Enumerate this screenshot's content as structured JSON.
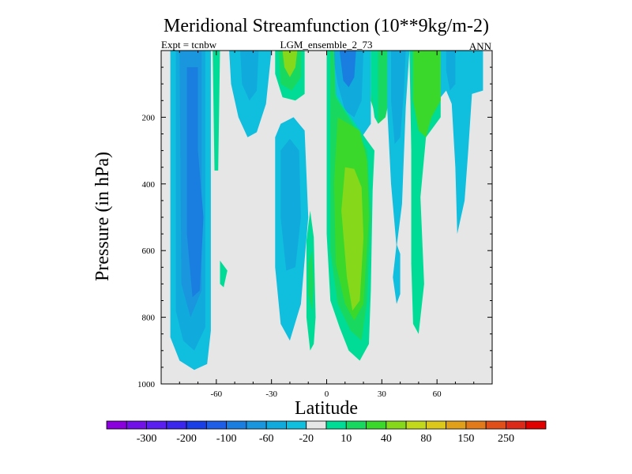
{
  "chart_data": {
    "type": "contour",
    "title": "Meridional Streamfunction (10**9kg/m-2)",
    "subtitle_left": "Expt = tcnbw",
    "subtitle_center": "LGM_ensemble_2_73",
    "subtitle_right": "ANN",
    "xlabel": "Latitude",
    "ylabel": "Pressure (in hPa)",
    "xlim": [
      -90,
      90
    ],
    "ylim": [
      1000,
      0
    ],
    "x_ticks": [
      -60,
      -30,
      0,
      30,
      60
    ],
    "x_tick_labels": [
      "-60",
      "-30",
      "0",
      "30",
      "60"
    ],
    "y_ticks": [
      200,
      400,
      600,
      800,
      1000
    ],
    "y_tick_labels": [
      "200",
      "400",
      "600",
      "800",
      "1000"
    ],
    "background_color": "#e6e6e6",
    "colorbar": {
      "colors": [
        "#8a00dc",
        "#7210e8",
        "#5a1ef0",
        "#3a26ec",
        "#1a3ee6",
        "#1e5ee6",
        "#1a7ee0",
        "#1a96de",
        "#10aadc",
        "#10bede",
        "#e6e6e6",
        "#00dc96",
        "#18d860",
        "#3ad82a",
        "#86d81a",
        "#c2d81a",
        "#dcc81a",
        "#e0a01a",
        "#e07a1a",
        "#e04e1a",
        "#dc2a1a",
        "#e00000"
      ],
      "labels": [
        {
          "after_index": 1,
          "text": "-300"
        },
        {
          "after_index": 3,
          "text": "-200"
        },
        {
          "after_index": 5,
          "text": "-100"
        },
        {
          "after_index": 7,
          "text": "-60"
        },
        {
          "after_index": 9,
          "text": "-20"
        },
        {
          "after_index": 11,
          "text": "10"
        },
        {
          "after_index": 13,
          "text": "40"
        },
        {
          "after_index": 15,
          "text": "80"
        },
        {
          "after_index": 17,
          "text": "150"
        },
        {
          "after_index": 19,
          "text": "250"
        }
      ]
    },
    "regions": [
      {
        "name": "sh-cell-outer",
        "color": "#10bede",
        "pts": [
          [
            -85,
            0
          ],
          [
            -63,
            0
          ],
          [
            -63,
            840
          ],
          [
            -65,
            940
          ],
          [
            -72,
            958
          ],
          [
            -80,
            930
          ],
          [
            -85,
            860
          ]
        ]
      },
      {
        "name": "sh-cell-l2",
        "color": "#10aadc",
        "pts": [
          [
            -82,
            0
          ],
          [
            -66,
            0
          ],
          [
            -66,
            830
          ],
          [
            -72,
            900
          ],
          [
            -78,
            870
          ],
          [
            -82,
            780
          ]
        ]
      },
      {
        "name": "sh-cell-l3",
        "color": "#1a96de",
        "pts": [
          [
            -80,
            0
          ],
          [
            -68,
            0
          ],
          [
            -68,
            720
          ],
          [
            -74,
            800
          ],
          [
            -79,
            700
          ]
        ]
      },
      {
        "name": "sh-cell-core",
        "color": "#1a7ee0",
        "pts": [
          [
            -76,
            50
          ],
          [
            -70,
            50
          ],
          [
            -70,
            300
          ],
          [
            -67,
            500
          ],
          [
            -69,
            720
          ],
          [
            -73,
            740
          ],
          [
            -76,
            550
          ]
        ]
      },
      {
        "name": "ferrel-strip",
        "color": "#00dc96",
        "pts": [
          [
            -62,
            0
          ],
          [
            -58,
            0
          ],
          [
            -59,
            360
          ],
          [
            -61,
            360
          ]
        ]
      },
      {
        "name": "small-green-blob",
        "color": "#00dc96",
        "pts": [
          [
            -58,
            630
          ],
          [
            -54,
            660
          ],
          [
            -56,
            710
          ],
          [
            -58,
            700
          ]
        ]
      },
      {
        "name": "nh-mid-cell",
        "color": "#10bede",
        "pts": [
          [
            -53,
            0
          ],
          [
            -30,
            0
          ],
          [
            -33,
            160
          ],
          [
            -38,
            245
          ],
          [
            -43,
            260
          ],
          [
            -48,
            200
          ],
          [
            -52,
            100
          ]
        ]
      },
      {
        "name": "nh-mid-core",
        "color": "#10aadc",
        "pts": [
          [
            -47,
            0
          ],
          [
            -37,
            0
          ],
          [
            -38,
            120
          ],
          [
            -42,
            150
          ],
          [
            -46,
            100
          ]
        ]
      },
      {
        "name": "trop-green-outer",
        "color": "#00dc96",
        "pts": [
          [
            -28,
            0
          ],
          [
            -12,
            0
          ],
          [
            -12,
            130
          ],
          [
            -17,
            150
          ],
          [
            -24,
            140
          ],
          [
            -28,
            70
          ]
        ]
      },
      {
        "name": "trop-green-mid",
        "color": "#18d860",
        "pts": [
          [
            -26,
            0
          ],
          [
            -14,
            0
          ],
          [
            -14,
            80
          ],
          [
            -19,
            120
          ],
          [
            -25,
            100
          ]
        ]
      },
      {
        "name": "trop-green-core",
        "color": "#86d81a",
        "pts": [
          [
            -24,
            0
          ],
          [
            -16,
            0
          ],
          [
            -17,
            50
          ],
          [
            -20,
            80
          ],
          [
            -23,
            50
          ]
        ]
      },
      {
        "name": "mid-blue-cell",
        "color": "#10bede",
        "pts": [
          [
            -28,
            260
          ],
          [
            -25,
            220
          ],
          [
            -18,
            200
          ],
          [
            -12,
            240
          ],
          [
            -10,
            500
          ],
          [
            -14,
            760
          ],
          [
            -20,
            870
          ],
          [
            -25,
            820
          ],
          [
            -28,
            650
          ]
        ]
      },
      {
        "name": "mid-blue-core",
        "color": "#10aadc",
        "pts": [
          [
            -25,
            300
          ],
          [
            -20,
            265
          ],
          [
            -15,
            300
          ],
          [
            -14,
            500
          ],
          [
            -17,
            650
          ],
          [
            -22,
            660
          ],
          [
            -25,
            500
          ]
        ]
      },
      {
        "name": "eq-green-strip",
        "color": "#00dc96",
        "pts": [
          [
            -11,
            570
          ],
          [
            -9,
            480
          ],
          [
            -7,
            560
          ],
          [
            -6,
            800
          ],
          [
            -7,
            880
          ],
          [
            -9,
            900
          ],
          [
            -11,
            800
          ]
        ]
      },
      {
        "name": "eq-green-strip-core",
        "color": "#18d860",
        "pts": [
          [
            -10,
            640
          ],
          [
            -8,
            600
          ],
          [
            -7,
            700
          ],
          [
            -8,
            780
          ],
          [
            -10,
            730
          ]
        ]
      },
      {
        "name": "eq-blue-top",
        "color": "#10bede",
        "pts": [
          [
            0,
            0
          ],
          [
            24,
            0
          ],
          [
            24,
            220
          ],
          [
            19,
            260
          ],
          [
            12,
            240
          ],
          [
            5,
            150
          ],
          [
            1,
            80
          ]
        ]
      },
      {
        "name": "eq-blue-top-l2",
        "color": "#10aadc",
        "pts": [
          [
            3,
            0
          ],
          [
            20,
            0
          ],
          [
            19,
            150
          ],
          [
            15,
            200
          ],
          [
            10,
            180
          ],
          [
            6,
            100
          ]
        ]
      },
      {
        "name": "eq-blue-top-core",
        "color": "#1a7ee0",
        "pts": [
          [
            7,
            0
          ],
          [
            16,
            0
          ],
          [
            15,
            80
          ],
          [
            12,
            110
          ],
          [
            9,
            90
          ]
        ]
      },
      {
        "name": "nh-hadley-outer",
        "color": "#00dc96",
        "pts": [
          [
            0,
            0
          ],
          [
            4,
            0
          ],
          [
            5,
            130
          ],
          [
            8,
            160
          ],
          [
            22,
            270
          ],
          [
            26,
            300
          ],
          [
            25,
            420
          ],
          [
            24,
            720
          ],
          [
            23,
            880
          ],
          [
            18,
            930
          ],
          [
            12,
            900
          ],
          [
            7,
            830
          ],
          [
            2,
            750
          ],
          [
            0,
            550
          ]
        ]
      },
      {
        "name": "nh-hadley-l2",
        "color": "#18d860",
        "pts": [
          [
            2,
            0
          ],
          [
            4,
            0
          ],
          [
            5,
            140
          ],
          [
            14,
            220
          ],
          [
            22,
            300
          ],
          [
            24,
            500
          ],
          [
            22,
            750
          ],
          [
            19,
            870
          ],
          [
            13,
            840
          ],
          [
            6,
            760
          ],
          [
            2,
            600
          ]
        ]
      },
      {
        "name": "nh-hadley-l3",
        "color": "#3ad82a",
        "pts": [
          [
            6,
            200
          ],
          [
            18,
            240
          ],
          [
            22,
            330
          ],
          [
            23,
            500
          ],
          [
            20,
            760
          ],
          [
            15,
            810
          ],
          [
            10,
            760
          ],
          [
            5,
            640
          ],
          [
            4,
            400
          ]
        ]
      },
      {
        "name": "nh-hadley-core",
        "color": "#86d81a",
        "pts": [
          [
            10,
            350
          ],
          [
            15,
            355
          ],
          [
            19,
            410
          ],
          [
            20,
            560
          ],
          [
            18,
            750
          ],
          [
            14,
            780
          ],
          [
            11,
            680
          ],
          [
            8,
            480
          ]
        ]
      },
      {
        "name": "nh-green-upper",
        "color": "#18d860",
        "pts": [
          [
            24,
            0
          ],
          [
            36,
            0
          ],
          [
            35,
            120
          ],
          [
            32,
            200
          ],
          [
            28,
            220
          ],
          [
            24,
            150
          ]
        ]
      },
      {
        "name": "nh-green-upper-outer",
        "color": "#00dc96",
        "pts": [
          [
            24,
            0
          ],
          [
            28,
            0
          ],
          [
            28,
            220
          ],
          [
            26,
            200
          ],
          [
            24,
            120
          ]
        ]
      },
      {
        "name": "nh-cyan-strip",
        "color": "#10bede",
        "pts": [
          [
            33,
            0
          ],
          [
            45,
            0
          ],
          [
            43,
            170
          ],
          [
            41,
            460
          ],
          [
            38,
            590
          ],
          [
            35,
            400
          ],
          [
            33,
            180
          ]
        ]
      },
      {
        "name": "nh-cyan-strip-core",
        "color": "#10aadc",
        "pts": [
          [
            35,
            0
          ],
          [
            43,
            0
          ],
          [
            42,
            120
          ],
          [
            40,
            260
          ],
          [
            37,
            280
          ],
          [
            35,
            150
          ]
        ]
      },
      {
        "name": "nh-ferrel-outer",
        "color": "#00dc96",
        "pts": [
          [
            45,
            0
          ],
          [
            62,
            0
          ],
          [
            62,
            200
          ],
          [
            54,
            260
          ],
          [
            51,
            440
          ],
          [
            53,
            700
          ],
          [
            50,
            850
          ],
          [
            47,
            820
          ],
          [
            46,
            640
          ],
          [
            46,
            300
          ]
        ]
      },
      {
        "name": "nh-ferrel-core",
        "color": "#3ad82a",
        "pts": [
          [
            47,
            0
          ],
          [
            62,
            0
          ],
          [
            62,
            150
          ],
          [
            57,
            200
          ],
          [
            54,
            260
          ],
          [
            50,
            240
          ],
          [
            47,
            150
          ]
        ]
      },
      {
        "name": "nh-polar-outer",
        "color": "#10bede",
        "pts": [
          [
            62,
            0
          ],
          [
            85,
            0
          ],
          [
            85,
            120
          ],
          [
            79,
            130
          ],
          [
            77,
            300
          ],
          [
            75,
            450
          ],
          [
            71,
            550
          ],
          [
            70,
            350
          ],
          [
            68,
            160
          ],
          [
            65,
            120
          ],
          [
            62,
            140
          ]
        ]
      },
      {
        "name": "nh-polar-core",
        "color": "#10aadc",
        "pts": [
          [
            65,
            0
          ],
          [
            70,
            0
          ],
          [
            70,
            100
          ],
          [
            67,
            120
          ],
          [
            65,
            60
          ]
        ]
      },
      {
        "name": "small-blue-blob",
        "color": "#10bede",
        "pts": [
          [
            38,
            580
          ],
          [
            40,
            610
          ],
          [
            40,
            730
          ],
          [
            38,
            760
          ],
          [
            36,
            680
          ]
        ]
      }
    ]
  }
}
